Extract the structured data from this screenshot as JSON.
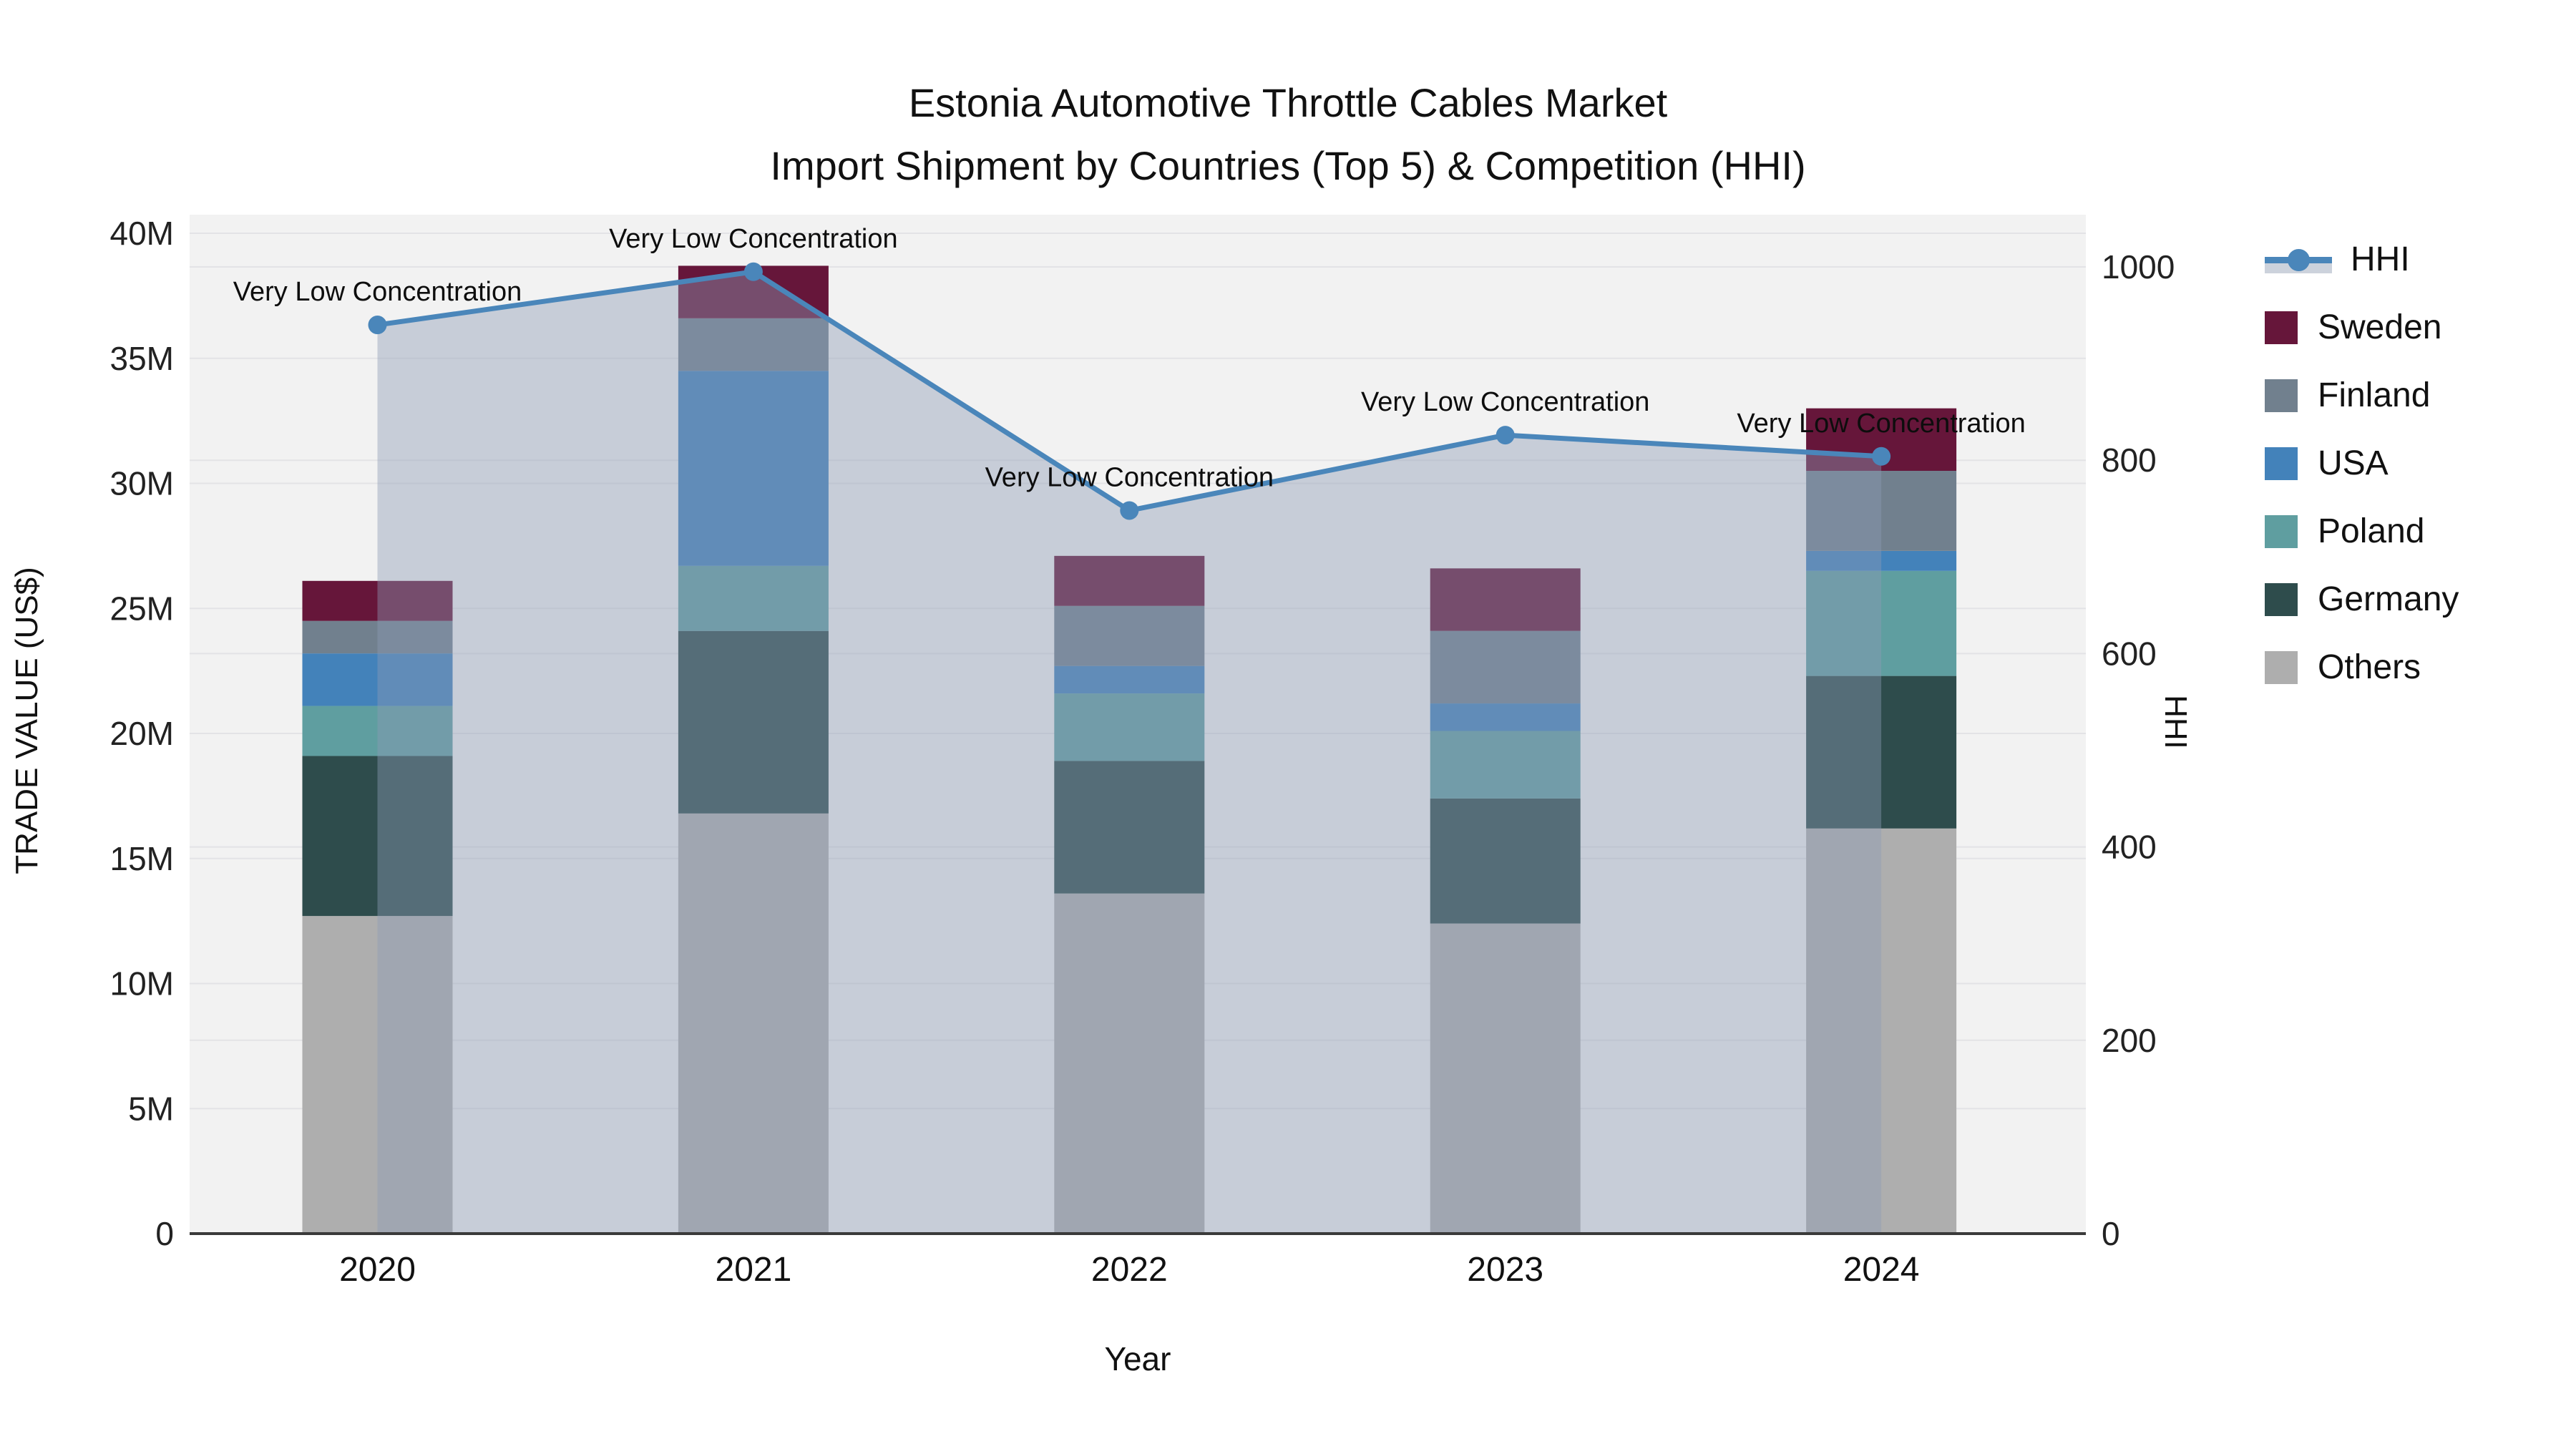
{
  "title": {
    "line1": "Estonia Automotive Throttle Cables Market",
    "line2": "Import Shipment by Countries (Top 5) & Competition (HHI)"
  },
  "colors": {
    "plot_bg": "#f2f2f2",
    "grid": "#e3e3e6",
    "axis_line": "#3a3a3a",
    "hhi_line": "#4a86ba",
    "hhi_area_fill": "rgba(140,155,180,0.42)",
    "hhi_area_swatch": "#ccd2dc"
  },
  "chart_data": {
    "type": "bar+line",
    "title": "Estonia Automotive Throttle Cables Market — Import Shipment by Countries (Top 5) & Competition (HHI)",
    "categories": [
      "2020",
      "2021",
      "2022",
      "2023",
      "2024"
    ],
    "xlabel": "Year",
    "ylabel_left": "TRADE VALUE (US$)",
    "ylabel_right": "HHI",
    "values_unit": "millions USD",
    "stacked": true,
    "grid": true,
    "legend_position": "right",
    "left_axis": {
      "max": 40,
      "values": [
        0,
        5,
        10,
        15,
        20,
        25,
        30,
        35,
        40
      ],
      "ticks": [
        "0",
        "5M",
        "10M",
        "15M",
        "20M",
        "25M",
        "30M",
        "35M",
        "40M"
      ]
    },
    "right_axis": {
      "max": 1000,
      "values": [
        0,
        200,
        400,
        600,
        800,
        1000
      ],
      "ticks": [
        "0",
        "200",
        "400",
        "600",
        "800",
        "1000"
      ]
    },
    "series": [
      {
        "name": "Others",
        "color": "#aeaeae",
        "values": [
          12.7,
          16.8,
          13.6,
          12.4,
          16.2
        ]
      },
      {
        "name": "Germany",
        "color": "#2e4c4c",
        "values": [
          6.4,
          7.3,
          5.3,
          5.0,
          6.1
        ]
      },
      {
        "name": "Poland",
        "color": "#5f9ea0",
        "values": [
          2.0,
          2.6,
          2.7,
          2.7,
          4.2
        ]
      },
      {
        "name": "USA",
        "color": "#4382ba",
        "values": [
          2.1,
          7.8,
          1.1,
          1.1,
          0.8
        ]
      },
      {
        "name": "Finland",
        "color": "#71808e",
        "values": [
          1.3,
          2.1,
          2.4,
          2.9,
          3.2
        ]
      },
      {
        "name": "Sweden",
        "color": "#66163a",
        "values": [
          1.6,
          2.1,
          2.0,
          2.5,
          2.5
        ]
      }
    ],
    "bar_totals": [
      26.1,
      38.7,
      27.1,
      26.6,
      33.0
    ],
    "hhi": {
      "name": "HHI",
      "color": "#4a86ba",
      "values": [
        940,
        995,
        748,
        826,
        804
      ]
    },
    "annotations": [
      "Very Low Concentration",
      "Very Low Concentration",
      "Very Low Concentration",
      "Very Low Concentration",
      "Very Low Concentration"
    ]
  },
  "legend": {
    "items": [
      {
        "label": "HHI",
        "type": "line"
      },
      {
        "label": "Sweden",
        "type": "swatch"
      },
      {
        "label": "Finland",
        "type": "swatch"
      },
      {
        "label": "USA",
        "type": "swatch"
      },
      {
        "label": "Poland",
        "type": "swatch"
      },
      {
        "label": "Germany",
        "type": "swatch"
      },
      {
        "label": "Others",
        "type": "swatch"
      }
    ]
  }
}
